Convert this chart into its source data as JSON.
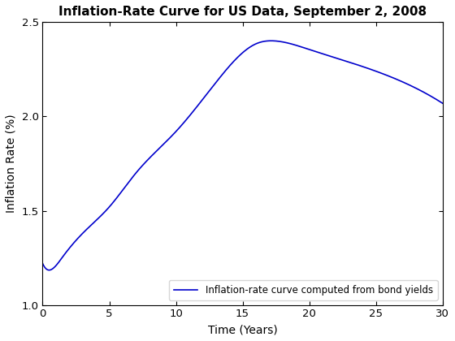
{
  "title": "Inflation-Rate Curve for US Data, September 2, 2008",
  "xlabel": "Time (Years)",
  "ylabel": "Inflation Rate (%)",
  "xlim": [
    0,
    30
  ],
  "ylim": [
    1.0,
    2.5
  ],
  "xticks": [
    0,
    5,
    10,
    15,
    20,
    25,
    30
  ],
  "yticks": [
    1.0,
    1.5,
    2.0,
    2.5
  ],
  "line_color": "#0000CC",
  "line_width": 1.2,
  "legend_label": "Inflation-rate curve computed from bond yields",
  "background_color": "#ffffff",
  "title_fontsize": 11,
  "label_fontsize": 10,
  "control_t": [
    0.0,
    0.5,
    0.8,
    1.5,
    3.0,
    5.0,
    7.0,
    10.0,
    13.0,
    16.0,
    17.5,
    20.0,
    25.0,
    30.0
  ],
  "control_y": [
    1.22,
    1.185,
    1.195,
    1.255,
    1.38,
    1.52,
    1.7,
    1.92,
    2.18,
    2.385,
    2.4,
    2.355,
    2.24,
    2.07
  ]
}
